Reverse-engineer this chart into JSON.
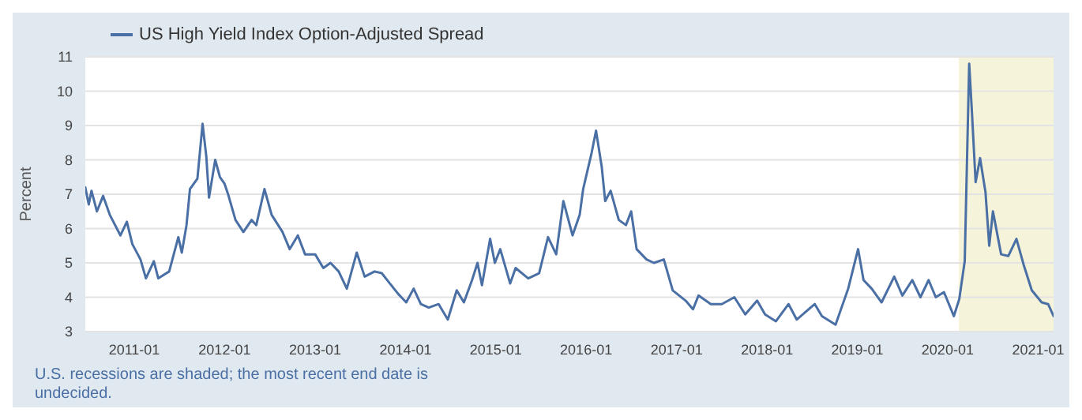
{
  "chart_data": {
    "type": "line",
    "ylabel": "Percent",
    "legend": "top left",
    "grid": "y",
    "marker": "none",
    "line_style": "solid",
    "annotations": [
      "U.S. recessions are shaded; the most recent end date is undecided."
    ],
    "xlim": [
      "2010-06-17",
      "2021-03-04"
    ],
    "xticks": [
      "2011-01",
      "2012-01",
      "2013-01",
      "2014-01",
      "2015-01",
      "2016-01",
      "2017-01",
      "2018-01",
      "2019-01",
      "2020-01",
      "2021-01"
    ],
    "ylim": [
      3,
      11
    ],
    "yticks": [
      3,
      4,
      5,
      6,
      7,
      8,
      9,
      10,
      11
    ],
    "bands": [
      {
        "axis": "x",
        "from": "2020-02-15",
        "to": "2021-03-04",
        "color": "#f5f3d9"
      }
    ],
    "x": [
      "2010-06-17",
      "2010-07-01",
      "2010-07-12",
      "2010-08-03",
      "2010-08-28",
      "2010-09-24",
      "2010-11-06",
      "2010-12-02",
      "2010-12-24",
      "2011-01-26",
      "2011-02-17",
      "2011-03-21",
      "2011-04-08",
      "2011-05-22",
      "2011-06-28",
      "2011-07-12",
      "2011-07-31",
      "2011-08-14",
      "2011-09-13",
      "2011-10-04",
      "2011-10-19",
      "2011-10-30",
      "2011-11-24",
      "2011-12-13",
      "2012-01-01",
      "2012-01-15",
      "2012-02-14",
      "2012-03-17",
      "2012-04-19",
      "2012-05-08",
      "2012-06-10",
      "2012-07-09",
      "2012-08-22",
      "2012-09-20",
      "2012-10-23",
      "2012-11-21",
      "2013-01-01",
      "2013-02-03",
      "2013-03-04",
      "2013-04-06",
      "2013-05-09",
      "2013-06-18",
      "2013-07-20",
      "2013-08-29",
      "2013-09-27",
      "2013-10-30",
      "2013-12-02",
      "2014-01-04",
      "2014-02-03",
      "2014-03-04",
      "2014-04-05",
      "2014-05-15",
      "2014-06-21",
      "2014-07-27",
      "2014-08-25",
      "2014-09-27",
      "2014-10-19",
      "2014-11-06",
      "2014-12-09",
      "2014-12-28",
      "2015-01-19",
      "2015-02-28",
      "2015-03-22",
      "2015-05-12",
      "2015-06-25",
      "2015-07-31",
      "2015-09-02",
      "2015-10-01",
      "2015-11-07",
      "2015-12-06",
      "2015-12-20",
      "2016-01-23",
      "2016-02-10",
      "2016-03-04",
      "2016-03-18",
      "2016-04-09",
      "2016-05-12",
      "2016-06-10",
      "2016-07-01",
      "2016-07-23",
      "2016-09-01",
      "2016-10-01",
      "2016-11-10",
      "2016-12-16",
      "2017-02-06",
      "2017-03-08",
      "2017-03-30",
      "2017-05-19",
      "2017-07-02",
      "2017-08-22",
      "2017-10-05",
      "2017-11-22",
      "2017-12-24",
      "2018-02-06",
      "2018-03-29",
      "2018-05-01",
      "2018-07-13",
      "2018-08-11",
      "2018-10-05",
      "2018-11-25",
      "2019-01-04",
      "2019-01-26",
      "2019-02-28",
      "2019-04-09",
      "2019-05-30",
      "2019-07-02",
      "2019-08-11",
      "2019-09-13",
      "2019-10-16",
      "2019-11-14",
      "2019-12-17",
      "2020-01-26",
      "2020-02-17",
      "2020-03-10",
      "2020-03-28",
      "2020-04-08",
      "2020-04-23",
      "2020-05-11",
      "2020-06-02",
      "2020-06-17",
      "2020-07-02",
      "2020-08-04",
      "2020-09-02",
      "2020-10-05",
      "2020-11-03",
      "2020-12-06",
      "2021-01-15",
      "2021-02-10",
      "2021-03-04"
    ],
    "series": [
      {
        "name": "US High Yield Index Option-Adjusted Spread",
        "color": "#4a6fa5",
        "values": [
          7.2,
          6.7,
          7.1,
          6.5,
          6.95,
          6.4,
          5.8,
          6.2,
          5.55,
          5.1,
          4.55,
          5.05,
          4.55,
          4.75,
          5.75,
          5.3,
          6.1,
          7.15,
          7.45,
          9.05,
          8.1,
          6.9,
          8.0,
          7.5,
          7.3,
          7.0,
          6.25,
          5.9,
          6.25,
          6.1,
          7.15,
          6.4,
          5.9,
          5.4,
          5.8,
          5.25,
          5.25,
          4.85,
          5.0,
          4.75,
          4.25,
          5.3,
          4.6,
          4.75,
          4.7,
          4.4,
          4.1,
          3.85,
          4.25,
          3.8,
          3.7,
          3.8,
          3.35,
          4.2,
          3.85,
          4.5,
          5.0,
          4.35,
          5.7,
          5.0,
          5.4,
          4.4,
          4.85,
          4.55,
          4.7,
          5.75,
          5.25,
          6.8,
          5.8,
          6.4,
          7.15,
          8.2,
          8.85,
          7.8,
          6.8,
          7.1,
          6.25,
          6.1,
          6.5,
          5.4,
          5.1,
          5.0,
          5.1,
          4.2,
          3.9,
          3.65,
          4.05,
          3.8,
          3.8,
          4.0,
          3.5,
          3.9,
          3.5,
          3.3,
          3.8,
          3.35,
          3.8,
          3.45,
          3.2,
          4.25,
          5.4,
          4.5,
          4.25,
          3.85,
          4.6,
          4.05,
          4.5,
          4.0,
          4.5,
          4.0,
          4.15,
          3.45,
          3.95,
          5.05,
          10.8,
          9.4,
          7.35,
          8.05,
          7.05,
          5.5,
          6.5,
          5.25,
          5.2,
          5.7,
          4.95,
          4.2,
          3.85,
          3.8,
          3.45
        ]
      }
    ]
  }
}
